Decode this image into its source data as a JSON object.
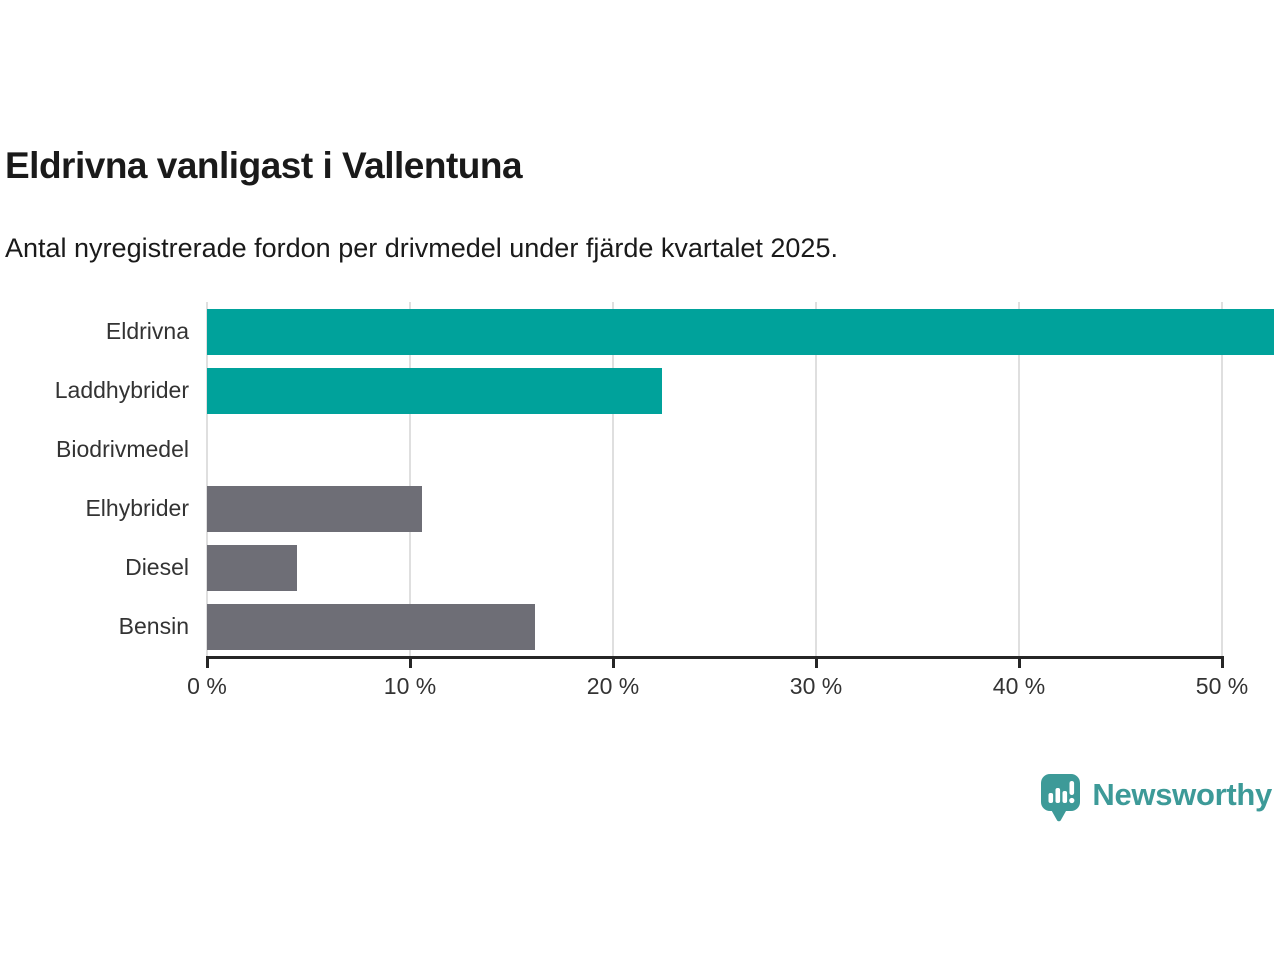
{
  "chart_data": {
    "type": "bar",
    "orientation": "horizontal",
    "title": "Eldrivna vanligast i Vallentuna",
    "subtitle": "Antal nyregistrerade fordon per drivmedel under fjärde kvartalet 2025.",
    "categories": [
      "Eldrivna",
      "Laddhybrider",
      "Biodrivmedel",
      "Elhybrider",
      "Diesel",
      "Bensin"
    ],
    "values": [
      49.7,
      21.2,
      0,
      10,
      4.2,
      15.3
    ],
    "unit": "%",
    "xlabel": "",
    "ylabel": "",
    "xlim": [
      0,
      50
    ],
    "x_ticks": [
      {
        "value": 0,
        "label": "0 %"
      },
      {
        "value": 10,
        "label": "10 %"
      },
      {
        "value": 20,
        "label": "20 %"
      },
      {
        "value": 30,
        "label": "30 %"
      },
      {
        "value": 40,
        "label": "40 %"
      },
      {
        "value": 50,
        "label": "50 %"
      }
    ],
    "grid": "vertical-only",
    "legend": "none",
    "bar_colors": [
      "#00a29b",
      "#00a29b",
      "#6e6e76",
      "#6e6e76",
      "#6e6e76",
      "#6e6e76"
    ],
    "colors": {
      "highlight": "#00a29b",
      "default": "#6e6e76",
      "gridline": "#dfdfdf",
      "axis": "#262626",
      "text": "#333333"
    }
  },
  "footer": {
    "brand": "Newsworthy",
    "brand_color": "#3d9a98",
    "logo_icon": "speech-bubble-with-bar-chart-and-exclamation"
  }
}
